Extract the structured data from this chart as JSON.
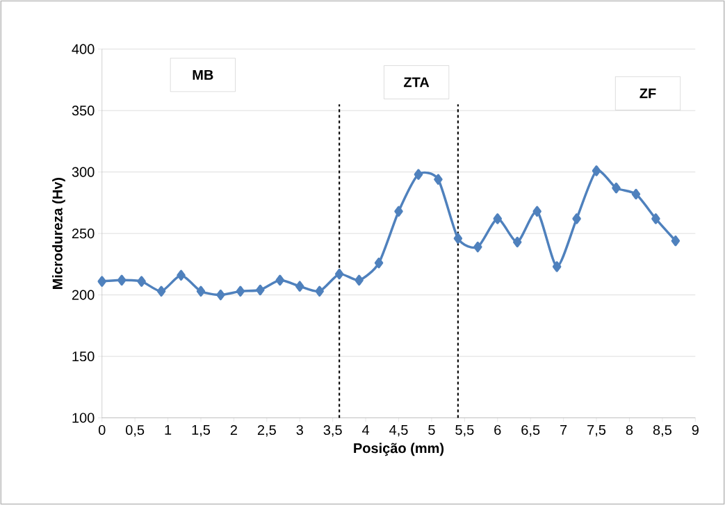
{
  "chart_data": {
    "type": "line",
    "xlabel": "Posição (mm)",
    "ylabel": "Microdureza (Hv)",
    "x": [
      0,
      0.3,
      0.6,
      0.9,
      1.2,
      1.5,
      1.8,
      2.1,
      2.4,
      2.7,
      3.0,
      3.3,
      3.6,
      3.9,
      4.2,
      4.5,
      4.8,
      5.1,
      5.4,
      5.7,
      6.0,
      6.3,
      6.6,
      6.9,
      7.2,
      7.5,
      7.8,
      8.1,
      8.4,
      8.7
    ],
    "series": [
      {
        "color": "#4f81bd",
        "values": [
          211,
          212,
          211,
          203,
          216,
          203,
          200,
          203,
          204,
          212,
          207,
          203,
          217,
          212,
          226,
          268,
          298,
          294,
          246,
          239,
          262,
          243,
          268,
          223,
          262,
          301,
          287,
          282,
          262,
          244
        ]
      }
    ],
    "xlim": [
      0,
      9
    ],
    "xticks": [
      0,
      {
        "value": 0.5,
        "label": "0,5"
      },
      1,
      {
        "value": 1.5,
        "label": "1,5"
      },
      2,
      {
        "value": 2.5,
        "label": "2,5"
      },
      3,
      {
        "value": 3.5,
        "label": "3,5"
      },
      4,
      {
        "value": 4.5,
        "label": "4,5"
      },
      5,
      {
        "value": 5.5,
        "label": "5,5"
      },
      6,
      {
        "value": 6.5,
        "label": "6,5"
      },
      7,
      {
        "value": 7.5,
        "label": "7,5"
      },
      8,
      {
        "value": 8.5,
        "label": "8,5"
      },
      9
    ],
    "ylim": [
      100,
      400
    ],
    "yticks": [
      100,
      150,
      200,
      250,
      300,
      350,
      400
    ],
    "grid": "y",
    "marker": "diamond",
    "line_style": "solid",
    "ref_lines": [
      {
        "axis": "x",
        "value": 3.6,
        "color": "#000000",
        "line_style": "dashed"
      },
      {
        "axis": "x",
        "value": 5.4,
        "color": "#000000",
        "line_style": "dashed"
      }
    ],
    "annotations": [
      "MB",
      "ZTA",
      "ZF"
    ]
  }
}
